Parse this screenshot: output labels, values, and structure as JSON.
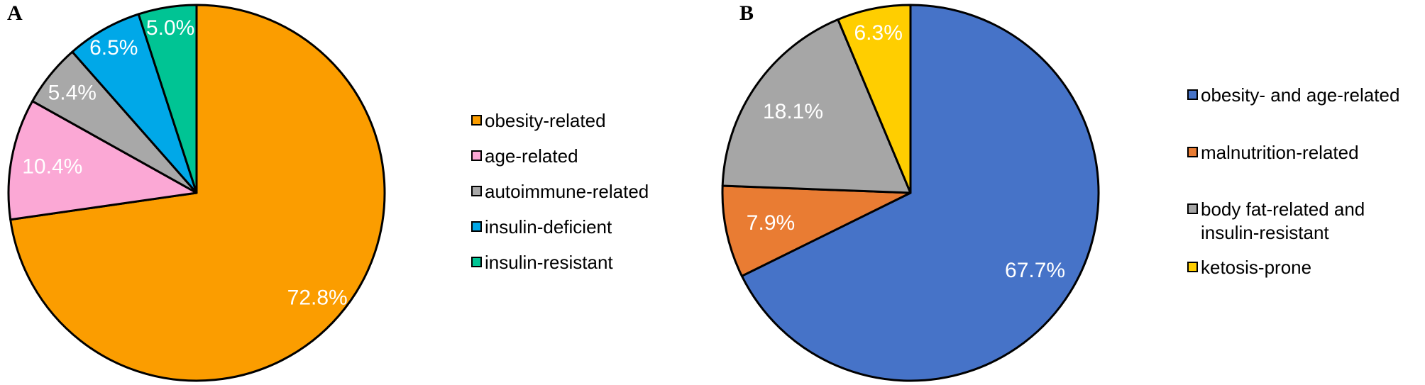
{
  "figure": {
    "background": "#FFFFFF",
    "panels": [
      {
        "label": "A"
      },
      {
        "label": "B"
      }
    ]
  },
  "chart_data": [
    {
      "type": "pie",
      "panel": "A",
      "labels": [
        "obesity-related",
        "age-related",
        "autoimmune-related",
        "insulin-deficient",
        "insulin-resistant"
      ],
      "values": [
        72.8,
        10.4,
        5.4,
        6.5,
        5.0
      ],
      "value_labels": [
        "72.8%",
        "10.4%",
        "5.4%",
        "6.5%",
        "5.0%"
      ],
      "colors": [
        "#FB9D00",
        "#FBA8D5",
        "#A8A8A8",
        "#00A8E8",
        "#00C494"
      ],
      "slice_border_color": "#000000",
      "value_label_color": "#FFFFFF",
      "start_angle_deg": 0,
      "direction": "clockwise",
      "legend_position": "right",
      "legend_labels": [
        [
          "obesity-related"
        ],
        [
          "age-related"
        ],
        [
          "autoimmune-related"
        ],
        [
          "insulin-deficient"
        ],
        [
          "insulin-resistant"
        ]
      ],
      "label_radius_fractions": [
        0.85,
        0.78,
        0.85,
        0.89,
        0.89
      ]
    },
    {
      "type": "pie",
      "panel": "B",
      "labels": [
        "obesity- and age-related",
        "malnutrition-related",
        "body fat-related and insulin-resistant",
        "ketosis-prone"
      ],
      "values": [
        67.7,
        7.9,
        18.1,
        6.3
      ],
      "value_labels": [
        "67.7%",
        "7.9%",
        "18.1%",
        "6.3%"
      ],
      "colors": [
        "#4673C8",
        "#E97C33",
        "#A6A6A6",
        "#FFCE00"
      ],
      "slice_border_color": "#000000",
      "value_label_color": "#FFFFFF",
      "start_angle_deg": 0,
      "direction": "clockwise",
      "legend_position": "right",
      "legend_labels": [
        [
          "obesity- and age-related"
        ],
        [
          "malnutrition-related"
        ],
        [
          "body fat-related and",
          "insulin-resistant"
        ],
        [
          "ketosis-prone"
        ]
      ],
      "label_radius_fractions": [
        0.78,
        0.76,
        0.76,
        0.87
      ]
    }
  ]
}
